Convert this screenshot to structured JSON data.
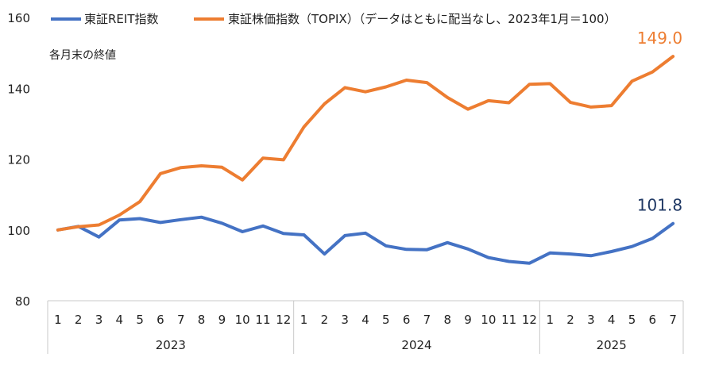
{
  "chart_data": {
    "type": "line",
    "title": "",
    "xlabel": "",
    "ylabel": "",
    "note": "各月末の終値",
    "legend_placement": "top-left",
    "ylim": [
      80,
      160
    ],
    "yticks": [
      80,
      100,
      120,
      140,
      160
    ],
    "grid": false,
    "categories": [
      "1",
      "2",
      "3",
      "4",
      "5",
      "6",
      "7",
      "8",
      "9",
      "10",
      "11",
      "12",
      "1",
      "2",
      "3",
      "4",
      "5",
      "6",
      "7",
      "8",
      "9",
      "10",
      "11",
      "12",
      "1",
      "2",
      "3",
      "4",
      "5",
      "6",
      "7"
    ],
    "year_groups": [
      {
        "label": "2023",
        "count": 12
      },
      {
        "label": "2024",
        "count": 12
      },
      {
        "label": "2025",
        "count": 7
      }
    ],
    "series": [
      {
        "name": "東証REIT指数",
        "color": "#4472c4",
        "values": [
          100,
          101,
          98,
          102.8,
          103.2,
          102.1,
          102.9,
          103.6,
          101.9,
          99.5,
          101.1,
          99.0,
          98.6,
          93.2,
          98.4,
          99.1,
          95.5,
          94.5,
          94.4,
          96.4,
          94.6,
          92.2,
          91.1,
          90.6,
          93.5,
          93.2,
          92.7,
          93.9,
          95.3,
          97.6,
          101.8
        ],
        "end_label": "101.8",
        "end_label_color": "#1f3864"
      },
      {
        "name": "東証株価指数（TOPIX）（データはともに配当なし、2023年1月＝100）",
        "color": "#ed7d31",
        "values": [
          100,
          100.9,
          101.4,
          104.2,
          108,
          115.9,
          117.6,
          118.1,
          117.7,
          114.1,
          120.3,
          119.8,
          129.1,
          135.6,
          140.2,
          139.0,
          140.4,
          142.3,
          141.6,
          137.4,
          134.1,
          136.5,
          135.9,
          141.1,
          141.3,
          136.0,
          134.7,
          135.1,
          142.0,
          144.6,
          149.0
        ],
        "end_label": "149.0",
        "end_label_color": "#ed7d31"
      }
    ]
  }
}
